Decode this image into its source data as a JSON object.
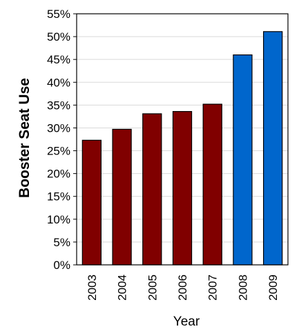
{
  "chart_data": {
    "type": "bar",
    "title": "",
    "xlabel": "Year",
    "ylabel": "Booster Seat Use",
    "categories": [
      "2003",
      "2004",
      "2005",
      "2006",
      "2007",
      "2008",
      "2009"
    ],
    "values": [
      27.3,
      29.7,
      33.1,
      33.6,
      35.2,
      46.0,
      51.1
    ],
    "value_unit": "%",
    "ylim": [
      0,
      55
    ],
    "ytick_step": 5,
    "yticks": [
      "0%",
      "5%",
      "10%",
      "15%",
      "20%",
      "25%",
      "30%",
      "35%",
      "40%",
      "45%",
      "50%",
      "55%"
    ],
    "grid": true,
    "legend": "none",
    "bar_colors": [
      "#800000",
      "#800000",
      "#800000",
      "#800000",
      "#800000",
      "#0066CC",
      "#0066CC"
    ],
    "grid_color": "#d9d9d9",
    "axis_color": "#000000"
  }
}
